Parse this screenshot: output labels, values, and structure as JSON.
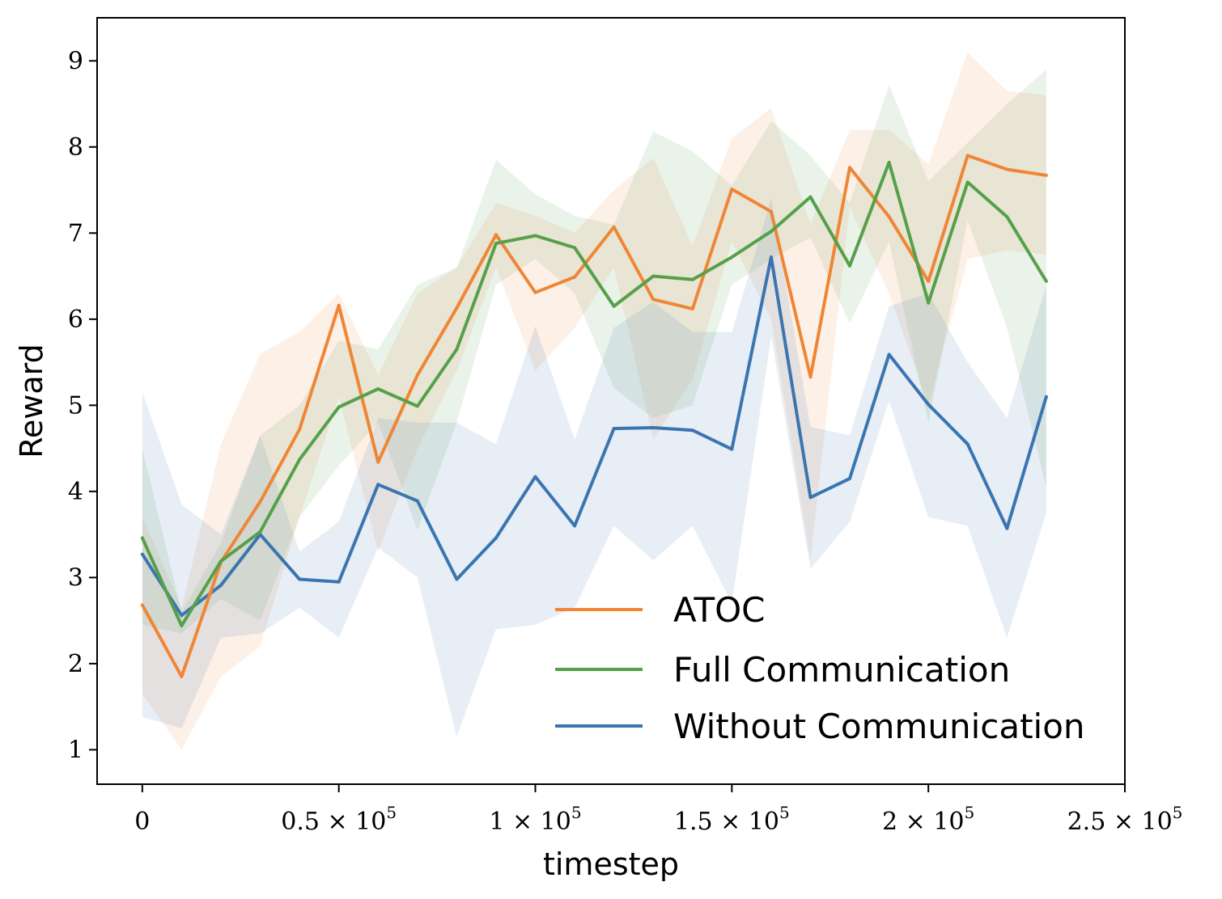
{
  "chart_data": {
    "type": "line",
    "xlabel": "timestep",
    "ylabel": "Reward",
    "xlim": [
      -11500,
      250000
    ],
    "ylim": [
      0.6,
      9.5
    ],
    "grid": false,
    "legend_position": "bottom-right",
    "x_ticks": [
      {
        "value": 0,
        "mantissa": "0",
        "exp": ""
      },
      {
        "value": 50000,
        "mantissa": "0.5 × 10",
        "exp": "5"
      },
      {
        "value": 100000,
        "mantissa": "1 × 10",
        "exp": "5"
      },
      {
        "value": 150000,
        "mantissa": "1.5 × 10",
        "exp": "5"
      },
      {
        "value": 200000,
        "mantissa": "2 × 10",
        "exp": "5"
      },
      {
        "value": 250000,
        "mantissa": "2.5 × 10",
        "exp": "5"
      }
    ],
    "y_ticks": [
      1,
      2,
      3,
      4,
      5,
      6,
      7,
      8,
      9
    ],
    "x": [
      0,
      10000,
      20000,
      30000,
      40000,
      50000,
      60000,
      70000,
      80000,
      90000,
      100000,
      110000,
      120000,
      130000,
      140000,
      150000,
      160000,
      170000,
      180000,
      190000,
      200000,
      210000,
      220000,
      230000
    ],
    "series": [
      {
        "name": "ATOC",
        "color": "#ef8636",
        "values": [
          2.68,
          1.85,
          3.18,
          3.88,
          4.72,
          6.16,
          4.34,
          5.35,
          6.13,
          6.98,
          6.31,
          6.49,
          7.07,
          6.23,
          6.12,
          7.51,
          7.25,
          5.33,
          7.76,
          7.19,
          6.44,
          7.9,
          7.74,
          7.67
        ],
        "lower": [
          1.65,
          1.0,
          1.85,
          2.2,
          3.7,
          5.1,
          3.3,
          4.5,
          5.4,
          6.6,
          5.4,
          5.9,
          6.6,
          4.6,
          5.3,
          6.9,
          6.0,
          3.2,
          7.3,
          6.3,
          5.0,
          6.7,
          6.8,
          6.75
        ],
        "upper": [
          3.7,
          2.65,
          4.55,
          5.6,
          5.85,
          6.3,
          5.35,
          6.3,
          6.6,
          7.35,
          7.2,
          7.0,
          7.5,
          7.87,
          6.85,
          8.1,
          8.45,
          7.1,
          8.2,
          8.2,
          7.8,
          9.1,
          8.65,
          8.6
        ]
      },
      {
        "name": "Full Communication",
        "color": "#56a04a",
        "values": [
          3.46,
          2.44,
          3.19,
          3.53,
          4.37,
          4.98,
          5.19,
          4.99,
          5.65,
          6.88,
          6.97,
          6.83,
          6.15,
          6.5,
          6.46,
          6.72,
          7.02,
          7.42,
          6.62,
          7.82,
          6.19,
          7.59,
          7.19,
          6.44
        ],
        "lower": [
          2.45,
          2.35,
          2.75,
          2.5,
          3.7,
          4.3,
          4.8,
          3.55,
          4.8,
          6.4,
          6.7,
          6.3,
          5.2,
          4.85,
          5.0,
          6.4,
          6.7,
          6.95,
          5.95,
          6.9,
          4.8,
          7.15,
          5.9,
          4.05
        ],
        "upper": [
          4.5,
          2.6,
          3.4,
          4.65,
          5.0,
          5.75,
          5.65,
          6.4,
          6.6,
          7.85,
          7.45,
          7.2,
          7.1,
          8.18,
          7.95,
          7.55,
          8.3,
          7.9,
          7.35,
          8.72,
          7.6,
          8.05,
          8.5,
          8.9
        ]
      },
      {
        "name": "Without Communication",
        "color": "#3b75b0",
        "values": [
          3.27,
          2.56,
          2.91,
          3.5,
          2.98,
          2.95,
          4.08,
          3.89,
          2.98,
          3.46,
          4.17,
          3.6,
          4.73,
          4.74,
          4.71,
          4.49,
          6.72,
          3.93,
          4.15,
          5.59,
          5.01,
          4.55,
          3.57,
          5.1
        ],
        "lower": [
          1.38,
          1.25,
          2.3,
          2.35,
          2.65,
          2.3,
          3.35,
          3.0,
          1.15,
          2.4,
          2.45,
          2.65,
          3.6,
          3.2,
          3.6,
          2.7,
          5.8,
          3.1,
          3.65,
          5.05,
          3.7,
          3.6,
          2.3,
          3.75
        ],
        "upper": [
          5.15,
          3.85,
          3.5,
          4.65,
          3.3,
          3.65,
          4.85,
          4.8,
          4.8,
          4.55,
          5.92,
          4.6,
          5.9,
          6.2,
          5.85,
          5.85,
          7.4,
          4.75,
          4.65,
          6.15,
          6.3,
          5.5,
          4.85,
          6.4
        ]
      }
    ]
  }
}
